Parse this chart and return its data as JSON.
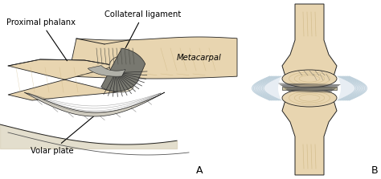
{
  "bg_color": "#ffffff",
  "skin_color": "#e8d5b0",
  "skin_dark": "#c8b078",
  "skin_mid": "#d4bc90",
  "skin_lt": "#f0e8d0",
  "gray_lig": "#888888",
  "gray_dark": "#444444",
  "gray_mid": "#666666",
  "blue_lig": "#b8ccd8",
  "blue_lt": "#d0dde8",
  "line_dark": "#222222",
  "line_mid": "#555555",
  "volar_color": "#c8c0a8",
  "label_fs": 7.2,
  "panel_fs": 9,
  "labels": {
    "proximal_phalanx": "Proximal phalanx",
    "collateral_ligament": "Collateral ligament",
    "metacarpal": "Metacarpal",
    "volar_plate": "Volar plate",
    "panel_a": "A",
    "panel_b": "B"
  }
}
